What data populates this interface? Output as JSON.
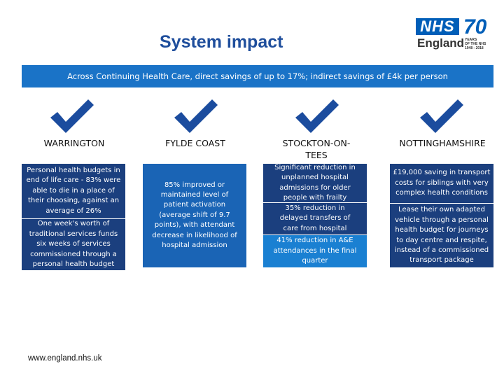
{
  "title": "System impact",
  "logo": {
    "nhs": "NHS",
    "england": "England",
    "seventy": "70",
    "years_line1": "YEARS",
    "years_line2": "OF THE NHS",
    "years_line3": "1948 - 2018"
  },
  "banner": "Across Continuing Health Care, direct savings of up to 17%; indirect savings of £4k per person",
  "columns": [
    {
      "region": "WARRINGTON",
      "boxes": [
        "Personal health budgets in end of life care - 83% were able to die in a place of their choosing, against an average of 26%",
        "One week's worth of traditional services funds six weeks of services commissioned through a personal health budget"
      ]
    },
    {
      "region": "FYLDE COAST",
      "boxes": [
        "85% improved or maintained level of patient activation (average shift of 9.7 points), with attendant decrease in likelihood of hospital admission"
      ]
    },
    {
      "region": "STOCKTON-ON-TEES",
      "boxes": [
        "Significant reduction in unplanned hospital admissions for older people with frailty",
        "35% reduction in delayed transfers of care from hospital",
        "41% reduction in A&E attendances in the final quarter"
      ]
    },
    {
      "region": "NOTTINGHAMSHIRE",
      "boxes": [
        "£19,000 saving in transport costs for siblings with very complex health conditions",
        "Lease their own adapted vehicle through a personal health budget for journeys to day centre and respite, instead of a commissioned transport package"
      ]
    }
  ],
  "icons": {
    "tick": "checkmark-icon"
  },
  "colors": {
    "title": "#1f4e9c",
    "banner": "#1a73c7",
    "tick": "#1b4c9e",
    "navy": "#1b3f7e",
    "mid": "#1a64b5",
    "bright": "#1a80d2"
  },
  "footer": "www.england.nhs.uk"
}
